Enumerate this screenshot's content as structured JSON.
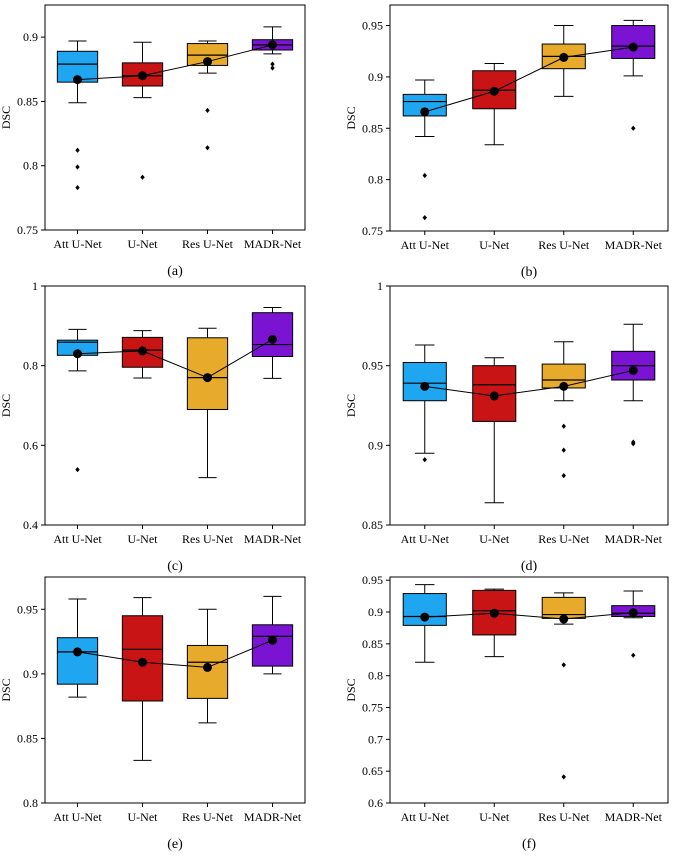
{
  "colors": {
    "categories": [
      "#1ea7f0",
      "#c81414",
      "#e8aa2a",
      "#7a14d2"
    ],
    "mean_line": "#000000"
  },
  "chart_data": [
    {
      "type": "box",
      "panel_label": "(a)",
      "ylabel": "DSC",
      "categories": [
        "Att U-Net",
        "U-Net",
        "Res U-Net",
        "MADR-Net"
      ],
      "ylim": [
        0.75,
        0.925
      ],
      "yticks": [
        0.75,
        0.8,
        0.85,
        0.9
      ],
      "ytick_labels": [
        "0.75",
        "0.8",
        "0.85",
        "0.9"
      ],
      "boxes": [
        {
          "min": 0.849,
          "q1": 0.865,
          "median": 0.879,
          "q3": 0.889,
          "max": 0.897,
          "mean": 0.867,
          "outliers": [
            0.812,
            0.799,
            0.783
          ]
        },
        {
          "min": 0.853,
          "q1": 0.862,
          "median": 0.87,
          "q3": 0.88,
          "max": 0.896,
          "mean": 0.87,
          "outliers": [
            0.791
          ]
        },
        {
          "min": 0.872,
          "q1": 0.878,
          "median": 0.886,
          "q3": 0.895,
          "max": 0.897,
          "mean": 0.881,
          "outliers": [
            0.843,
            0.814
          ]
        },
        {
          "min": 0.887,
          "q1": 0.89,
          "median": 0.894,
          "q3": 0.898,
          "max": 0.908,
          "mean": 0.894,
          "outliers": [
            0.879,
            0.876
          ]
        }
      ]
    },
    {
      "type": "box",
      "panel_label": "(b)",
      "ylabel": "DSC",
      "categories": [
        "Att U-Net",
        "U-Net",
        "Res U-Net",
        "MADR-Net"
      ],
      "ylim": [
        0.75,
        0.97
      ],
      "yticks": [
        0.75,
        0.8,
        0.85,
        0.9,
        0.95
      ],
      "ytick_labels": [
        "0.75",
        "0.8",
        "0.85",
        "0.9",
        "0.95"
      ],
      "boxes": [
        {
          "min": 0.842,
          "q1": 0.862,
          "median": 0.876,
          "q3": 0.883,
          "max": 0.897,
          "mean": 0.866,
          "outliers": [
            0.804,
            0.763
          ]
        },
        {
          "min": 0.834,
          "q1": 0.869,
          "median": 0.887,
          "q3": 0.906,
          "max": 0.913,
          "mean": 0.886,
          "outliers": []
        },
        {
          "min": 0.881,
          "q1": 0.908,
          "median": 0.92,
          "q3": 0.932,
          "max": 0.95,
          "mean": 0.919,
          "outliers": []
        },
        {
          "min": 0.901,
          "q1": 0.918,
          "median": 0.93,
          "q3": 0.95,
          "max": 0.955,
          "mean": 0.929,
          "outliers": [
            0.85
          ]
        }
      ]
    },
    {
      "type": "box",
      "panel_label": "(c)",
      "ylabel": "DSC",
      "categories": [
        "Att U-Net",
        "U-Net",
        "Res U-Net",
        "MADR-Net"
      ],
      "ylim": [
        0.4,
        1.0
      ],
      "yticks": [
        0.4,
        0.6,
        0.8,
        1.0
      ],
      "ytick_labels": [
        "0.4",
        "0.6",
        "0.8",
        "1"
      ],
      "boxes": [
        {
          "min": 0.787,
          "q1": 0.826,
          "median": 0.859,
          "q3": 0.864,
          "max": 0.891,
          "mean": 0.83,
          "outliers": [
            0.539
          ]
        },
        {
          "min": 0.769,
          "q1": 0.796,
          "median": 0.839,
          "q3": 0.871,
          "max": 0.888,
          "mean": 0.837,
          "outliers": []
        },
        {
          "min": 0.519,
          "q1": 0.69,
          "median": 0.77,
          "q3": 0.87,
          "max": 0.894,
          "mean": 0.77,
          "outliers": []
        },
        {
          "min": 0.768,
          "q1": 0.823,
          "median": 0.853,
          "q3": 0.933,
          "max": 0.946,
          "mean": 0.866,
          "outliers": []
        }
      ]
    },
    {
      "type": "box",
      "panel_label": "(d)",
      "ylabel": "DSC",
      "categories": [
        "Att U-Net",
        "U-Net",
        "Res U-Net",
        "MADR-Net"
      ],
      "ylim": [
        0.85,
        1.0
      ],
      "yticks": [
        0.85,
        0.9,
        0.95,
        1.0
      ],
      "ytick_labels": [
        "0.85",
        "0.9",
        "0.95",
        "1"
      ],
      "boxes": [
        {
          "min": 0.895,
          "q1": 0.928,
          "median": 0.939,
          "q3": 0.952,
          "max": 0.963,
          "mean": 0.937,
          "outliers": [
            0.891
          ]
        },
        {
          "min": 0.864,
          "q1": 0.915,
          "median": 0.938,
          "q3": 0.95,
          "max": 0.955,
          "mean": 0.931,
          "outliers": []
        },
        {
          "min": 0.928,
          "q1": 0.936,
          "median": 0.941,
          "q3": 0.951,
          "max": 0.965,
          "mean": 0.937,
          "outliers": [
            0.912,
            0.897,
            0.881
          ]
        },
        {
          "min": 0.928,
          "q1": 0.941,
          "median": 0.95,
          "q3": 0.959,
          "max": 0.976,
          "mean": 0.947,
          "outliers": [
            0.902,
            0.901
          ]
        }
      ]
    },
    {
      "type": "box",
      "panel_label": "(e)",
      "ylabel": "DSC",
      "categories": [
        "Att U-Net",
        "U-Net",
        "Res U-Net",
        "MADR-Net"
      ],
      "ylim": [
        0.8,
        0.975
      ],
      "yticks": [
        0.8,
        0.85,
        0.9,
        0.95
      ],
      "ytick_labels": [
        "0.8",
        "0.85",
        "0.9",
        "0.95"
      ],
      "boxes": [
        {
          "min": 0.882,
          "q1": 0.892,
          "median": 0.917,
          "q3": 0.928,
          "max": 0.958,
          "mean": 0.917,
          "outliers": []
        },
        {
          "min": 0.833,
          "q1": 0.879,
          "median": 0.919,
          "q3": 0.945,
          "max": 0.959,
          "mean": 0.909,
          "outliers": []
        },
        {
          "min": 0.862,
          "q1": 0.881,
          "median": 0.909,
          "q3": 0.922,
          "max": 0.95,
          "mean": 0.905,
          "outliers": []
        },
        {
          "min": 0.9,
          "q1": 0.906,
          "median": 0.929,
          "q3": 0.938,
          "max": 0.96,
          "mean": 0.926,
          "outliers": []
        }
      ]
    },
    {
      "type": "box",
      "panel_label": "(f)",
      "ylabel": "DSC",
      "categories": [
        "Att U-Net",
        "U-Net",
        "Res U-Net",
        "MADR-Net"
      ],
      "ylim": [
        0.6,
        0.955
      ],
      "yticks": [
        0.6,
        0.65,
        0.7,
        0.75,
        0.8,
        0.85,
        0.9,
        0.95
      ],
      "ytick_labels": [
        "0.6",
        "0.65",
        "0.7",
        "0.75",
        "0.8",
        "0.85",
        "0.9",
        "0.95"
      ],
      "boxes": [
        {
          "min": 0.821,
          "q1": 0.879,
          "median": 0.893,
          "q3": 0.929,
          "max": 0.943,
          "mean": 0.892,
          "outliers": []
        },
        {
          "min": 0.83,
          "q1": 0.864,
          "median": 0.902,
          "q3": 0.934,
          "max": 0.936,
          "mean": 0.898,
          "outliers": []
        },
        {
          "min": 0.881,
          "q1": 0.89,
          "median": 0.896,
          "q3": 0.923,
          "max": 0.93,
          "mean": 0.889,
          "outliers": [
            0.817,
            0.641
          ]
        },
        {
          "min": 0.891,
          "q1": 0.893,
          "median": 0.898,
          "q3": 0.91,
          "max": 0.933,
          "mean": 0.899,
          "outliers": [
            0.832
          ]
        }
      ]
    }
  ]
}
